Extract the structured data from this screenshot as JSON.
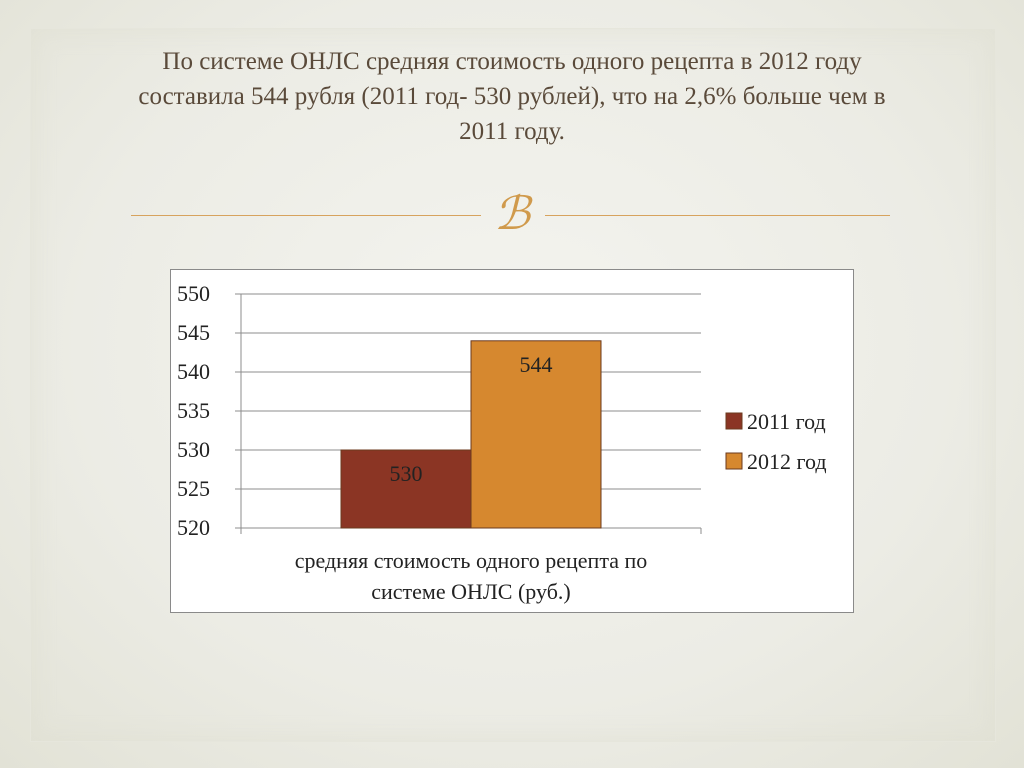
{
  "slide": {
    "title_line1": "По системе ОНЛС средняя стоимость одного рецепта в 2012 году",
    "title_line2": "составила 544 рубля (2011 год- 530 рублей), что на 2,6% больше чем в",
    "title_line3": "2011 году.",
    "ornament_glyph": "ℬ",
    "accent_color": "#d7a35e"
  },
  "chart_data": {
    "type": "bar",
    "categories": [
      "средняя стоимость одного рецепта по системе ОНЛС (руб.)"
    ],
    "category_label_lines": [
      "средняя стоимость одного рецепта по",
      "системе ОНЛС (руб.)"
    ],
    "series": [
      {
        "name": "2011 год",
        "values": [
          530
        ],
        "color": "#8b3524"
      },
      {
        "name": "2012 год",
        "values": [
          544
        ],
        "color": "#d6882f"
      }
    ],
    "ylim": [
      520,
      550
    ],
    "yticks": [
      520,
      525,
      530,
      535,
      540,
      545,
      550
    ],
    "data_labels": true,
    "grid": true,
    "legend_position": "right",
    "title": "",
    "xlabel": "",
    "ylabel": ""
  }
}
